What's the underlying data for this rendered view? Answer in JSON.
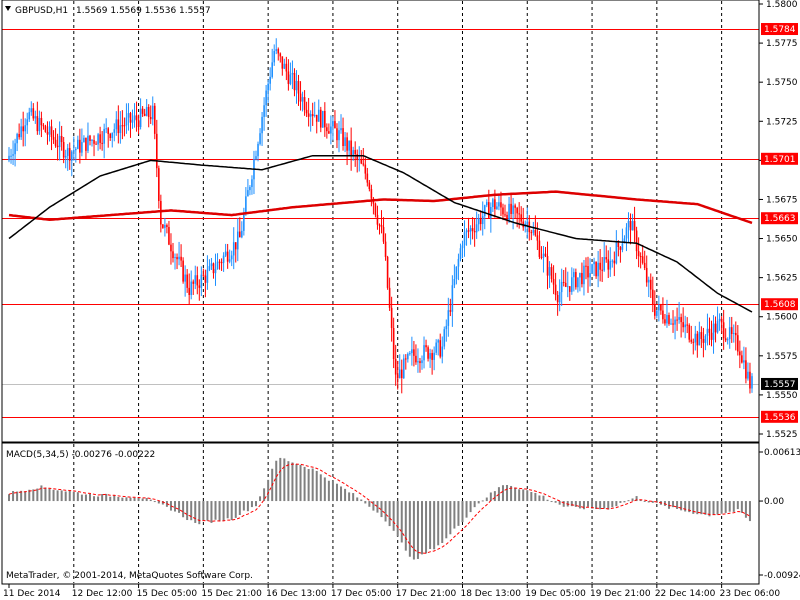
{
  "header": {
    "symbol": "GBPUSD,H1",
    "ohlc": "1.5569 1.5569 1.5536 1.5557",
    "arrow_icon": "triangle-down-icon"
  },
  "macd_header": "MACD(5,34,5) -0.00276 -0.00222",
  "copyright": "MetaTrader, © 2001-2014, MetaQuotes Software Corp.",
  "colors": {
    "bull": "#1e90ff",
    "bear": "#ff0000",
    "ma_fast": "#000000",
    "ma_slow": "#dd0000",
    "level": "#ff0000",
    "hist": "#808080",
    "signal": "#ff0000",
    "grid": "#000000"
  },
  "chart_data": [
    {
      "type": "candlestick",
      "title": "GBPUSD,H1",
      "ylim": [
        1.5525,
        1.58
      ],
      "y_ticks": [
        "1.5800",
        "1.5775",
        "1.5750",
        "1.5725",
        "1.5700",
        "1.5675",
        "1.5650",
        "1.5625",
        "1.5600",
        "1.5575",
        "1.5550",
        "1.5525"
      ],
      "x_ticks": [
        "11 Dec 2014",
        "12 Dec 12:00",
        "15 Dec 05:00",
        "15 Dec 21:00",
        "16 Dec 13:00",
        "17 Dec 05:00",
        "17 Dec 21:00",
        "18 Dec 13:00",
        "19 Dec 05:00",
        "19 Dec 21:00",
        "22 Dec 14:00",
        "23 Dec 06:00"
      ],
      "levels": [
        {
          "value": 1.5784,
          "label": "1.5784"
        },
        {
          "value": 1.5701,
          "label": "1.5701"
        },
        {
          "value": 1.5663,
          "label": "1.5663"
        },
        {
          "value": 1.5608,
          "label": "1.5608"
        },
        {
          "value": 1.5536,
          "label": "1.5536"
        }
      ],
      "current_price": {
        "value": 1.5557,
        "label": "1.5557"
      },
      "anchors": [
        {
          "t": 0,
          "p": 1.57
        },
        {
          "t": 10,
          "p": 1.573
        },
        {
          "t": 30,
          "p": 1.5705
        },
        {
          "t": 55,
          "p": 1.5722
        },
        {
          "t": 72,
          "p": 1.573
        },
        {
          "t": 76,
          "p": 1.5662
        },
        {
          "t": 90,
          "p": 1.5618
        },
        {
          "t": 100,
          "p": 1.5628
        },
        {
          "t": 115,
          "p": 1.565
        },
        {
          "t": 125,
          "p": 1.5722
        },
        {
          "t": 132,
          "p": 1.577
        },
        {
          "t": 148,
          "p": 1.5735
        },
        {
          "t": 165,
          "p": 1.5715
        },
        {
          "t": 178,
          "p": 1.569
        },
        {
          "t": 186,
          "p": 1.5648
        },
        {
          "t": 192,
          "p": 1.556
        },
        {
          "t": 200,
          "p": 1.5575
        },
        {
          "t": 215,
          "p": 1.558
        },
        {
          "t": 225,
          "p": 1.565
        },
        {
          "t": 240,
          "p": 1.5672
        },
        {
          "t": 258,
          "p": 1.566
        },
        {
          "t": 272,
          "p": 1.5615
        },
        {
          "t": 282,
          "p": 1.5625
        },
        {
          "t": 298,
          "p": 1.5635
        },
        {
          "t": 308,
          "p": 1.566
        },
        {
          "t": 320,
          "p": 1.5605
        },
        {
          "t": 330,
          "p": 1.5598
        },
        {
          "t": 342,
          "p": 1.5585
        },
        {
          "t": 352,
          "p": 1.5595
        },
        {
          "t": 362,
          "p": 1.558
        },
        {
          "t": 367,
          "p": 1.5557
        }
      ],
      "ma_fast": [
        {
          "t": 0,
          "p": 1.565
        },
        {
          "t": 20,
          "p": 1.567
        },
        {
          "t": 45,
          "p": 1.569
        },
        {
          "t": 70,
          "p": 1.57
        },
        {
          "t": 95,
          "p": 1.5697
        },
        {
          "t": 125,
          "p": 1.5694
        },
        {
          "t": 150,
          "p": 1.5703
        },
        {
          "t": 175,
          "p": 1.5703
        },
        {
          "t": 195,
          "p": 1.5692
        },
        {
          "t": 220,
          "p": 1.5673
        },
        {
          "t": 250,
          "p": 1.566
        },
        {
          "t": 280,
          "p": 1.565
        },
        {
          "t": 310,
          "p": 1.5647
        },
        {
          "t": 330,
          "p": 1.5635
        },
        {
          "t": 350,
          "p": 1.5615
        },
        {
          "t": 367,
          "p": 1.5603
        }
      ],
      "ma_slow": [
        {
          "t": 0,
          "p": 1.5665
        },
        {
          "t": 20,
          "p": 1.5662
        },
        {
          "t": 50,
          "p": 1.5665
        },
        {
          "t": 80,
          "p": 1.5668
        },
        {
          "t": 110,
          "p": 1.5665
        },
        {
          "t": 140,
          "p": 1.567
        },
        {
          "t": 185,
          "p": 1.5675
        },
        {
          "t": 210,
          "p": 1.5674
        },
        {
          "t": 240,
          "p": 1.5678
        },
        {
          "t": 270,
          "p": 1.568
        },
        {
          "t": 310,
          "p": 1.5675
        },
        {
          "t": 340,
          "p": 1.5672
        },
        {
          "t": 367,
          "p": 1.566
        }
      ]
    },
    {
      "type": "bar",
      "title": "MACD(5,34,5) -0.00276 -0.00222",
      "ylim": [
        -0.00924,
        0.00613
      ],
      "y_ticks": [
        "0.00613",
        "0.00",
        "-0.00924"
      ],
      "anchors": [
        {
          "t": 0,
          "v": 0.001
        },
        {
          "t": 15,
          "v": 0.0018
        },
        {
          "t": 40,
          "v": 0.0008
        },
        {
          "t": 65,
          "v": 0.0005
        },
        {
          "t": 80,
          "v": -0.001
        },
        {
          "t": 92,
          "v": -0.0028
        },
        {
          "t": 110,
          "v": -0.0022
        },
        {
          "t": 122,
          "v": -0.0005
        },
        {
          "t": 133,
          "v": 0.0055
        },
        {
          "t": 150,
          "v": 0.004
        },
        {
          "t": 172,
          "v": 0.0005
        },
        {
          "t": 185,
          "v": -0.002
        },
        {
          "t": 200,
          "v": -0.0075
        },
        {
          "t": 215,
          "v": -0.005
        },
        {
          "t": 232,
          "v": -0.0002
        },
        {
          "t": 245,
          "v": 0.0022
        },
        {
          "t": 262,
          "v": 0.0008
        },
        {
          "t": 275,
          "v": -0.0008
        },
        {
          "t": 295,
          "v": -0.001
        },
        {
          "t": 310,
          "v": 0.0005
        },
        {
          "t": 325,
          "v": -0.0008
        },
        {
          "t": 345,
          "v": -0.0018
        },
        {
          "t": 360,
          "v": -0.0012
        },
        {
          "t": 367,
          "v": -0.00276
        }
      ]
    }
  ]
}
